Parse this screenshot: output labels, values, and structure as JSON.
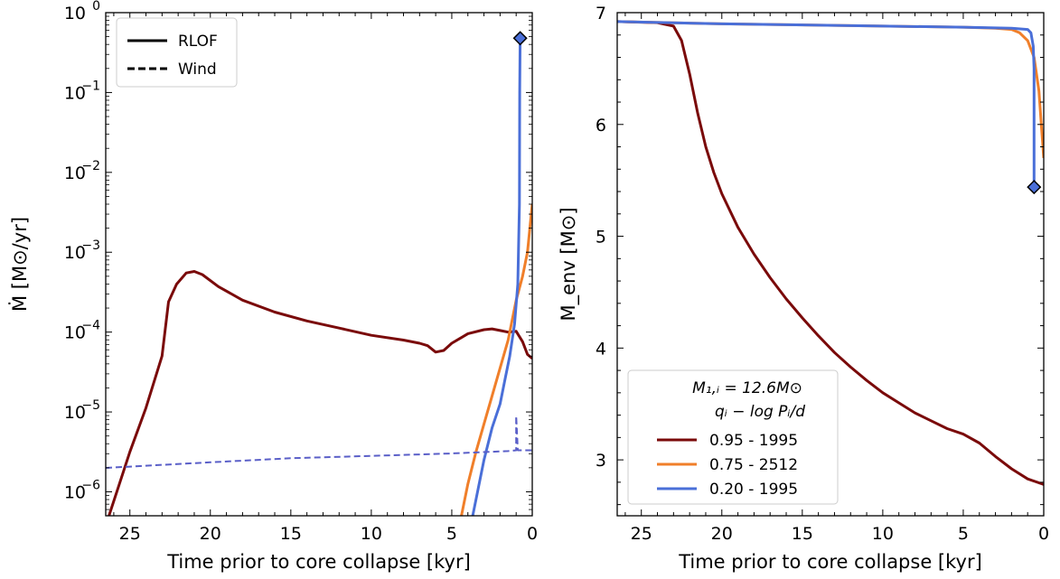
{
  "chart_data": [
    {
      "type": "line",
      "xlabel": "Time prior to core collapse [kyr]",
      "ylabel": "Ṁ [M⊙/yr]",
      "xlim": [
        26.5,
        0
      ],
      "ylim_log10": [
        -6.3,
        0
      ],
      "yscale": "log",
      "xticks": [
        "25",
        "20",
        "15",
        "10",
        "5",
        "0"
      ],
      "yticks": [
        {
          "base": "10",
          "exp": "−6",
          "v": -6
        },
        {
          "base": "10",
          "exp": "−5",
          "v": -5
        },
        {
          "base": "10",
          "exp": "−4",
          "v": -4
        },
        {
          "base": "10",
          "exp": "−3",
          "v": -3
        },
        {
          "base": "10",
          "exp": "−2",
          "v": -2
        },
        {
          "base": "10",
          "exp": "−1",
          "v": -1
        },
        {
          "base": "10",
          "exp": "0",
          "v": 0
        }
      ],
      "legend": {
        "position": "top-left",
        "entries": [
          {
            "label": "RLOF",
            "style": "solid"
          },
          {
            "label": "Wind",
            "style": "dashed"
          }
        ]
      },
      "series": [
        {
          "color": "#7a0a0a",
          "style": "solid",
          "points": [
            [
              26.3,
              -6.3
            ],
            [
              25,
              -5.5
            ],
            [
              24,
              -4.95
            ],
            [
              23,
              -4.3
            ],
            [
              22.6,
              -3.62
            ],
            [
              22.1,
              -3.4
            ],
            [
              21.5,
              -3.26
            ],
            [
              21,
              -3.24
            ],
            [
              20.5,
              -3.28
            ],
            [
              19.5,
              -3.43
            ],
            [
              18,
              -3.6
            ],
            [
              16,
              -3.75
            ],
            [
              14,
              -3.86
            ],
            [
              12,
              -3.95
            ],
            [
              10,
              -4.04
            ],
            [
              8,
              -4.1
            ],
            [
              7,
              -4.14
            ],
            [
              6.5,
              -4.17
            ],
            [
              6,
              -4.25
            ],
            [
              5.5,
              -4.23
            ],
            [
              5,
              -4.14
            ],
            [
              4,
              -4.02
            ],
            [
              3,
              -3.97
            ],
            [
              2.5,
              -3.96
            ],
            [
              2,
              -3.98
            ],
            [
              1.5,
              -4.0
            ],
            [
              1,
              -3.99
            ],
            [
              0.6,
              -4.12
            ],
            [
              0.3,
              -4.28
            ],
            [
              0,
              -4.33
            ]
          ]
        },
        {
          "color": "#f07f2a",
          "style": "solid",
          "points": [
            [
              4.4,
              -6.3
            ],
            [
              4,
              -5.9
            ],
            [
              3.5,
              -5.5
            ],
            [
              3,
              -5.15
            ],
            [
              2.5,
              -4.8
            ],
            [
              2,
              -4.45
            ],
            [
              1.5,
              -4.1
            ],
            [
              1,
              -3.6
            ],
            [
              0.6,
              -3.3
            ],
            [
              0.3,
              -3.0
            ],
            [
              0.1,
              -2.6
            ],
            [
              0,
              -2.4
            ]
          ]
        },
        {
          "color": "#4a6fd8",
          "style": "solid",
          "points": [
            [
              3.7,
              -6.3
            ],
            [
              3,
              -5.6
            ],
            [
              2.5,
              -5.2
            ],
            [
              2,
              -4.9
            ],
            [
              1.7,
              -4.6
            ],
            [
              1.4,
              -4.3
            ],
            [
              1.1,
              -3.9
            ],
            [
              0.9,
              -3.4
            ],
            [
              0.8,
              -2.4
            ],
            [
              0.78,
              -1.0
            ],
            [
              0.75,
              -0.32
            ]
          ]
        },
        {
          "color": "#5a5fc8",
          "style": "dashed",
          "points": [
            [
              26.5,
              -5.7
            ],
            [
              20,
              -5.63
            ],
            [
              15,
              -5.58
            ],
            [
              10,
              -5.55
            ],
            [
              5,
              -5.52
            ],
            [
              1.5,
              -5.49
            ],
            [
              1,
              -5.48
            ],
            [
              1,
              -5.05
            ],
            [
              0.9,
              -5.48
            ],
            [
              0,
              -5.48
            ]
          ]
        }
      ],
      "markers": [
        {
          "x": 0.75,
          "y": -0.32,
          "color": "#4a6fd8"
        }
      ]
    },
    {
      "type": "line",
      "xlabel": "Time prior to core collapse [kyr]",
      "ylabel": "M_env [M⊙]",
      "xlim": [
        26.5,
        0
      ],
      "ylim": [
        2.5,
        7.0
      ],
      "xticks": [
        "25",
        "20",
        "15",
        "10",
        "5",
        "0"
      ],
      "yticks": [
        "3",
        "4",
        "5",
        "6",
        "7"
      ],
      "legend": {
        "position": "bottom-left",
        "title_line1": "M₁,ᵢ = 12.6M⊙",
        "title_line2": "qᵢ − log Pᵢ/d",
        "entries": [
          {
            "label": "0.95 - 1995",
            "color": "#7a0a0a"
          },
          {
            "label": "0.75 - 2512",
            "color": "#f07f2a"
          },
          {
            "label": "0.20 - 1995",
            "color": "#4a6fd8"
          }
        ]
      },
      "series": [
        {
          "color": "#7a0a0a",
          "style": "solid",
          "points": [
            [
              26.5,
              6.92
            ],
            [
              24,
              6.91
            ],
            [
              23,
              6.88
            ],
            [
              22.5,
              6.75
            ],
            [
              22,
              6.45
            ],
            [
              21.5,
              6.1
            ],
            [
              21,
              5.8
            ],
            [
              20.5,
              5.57
            ],
            [
              20,
              5.38
            ],
            [
              19,
              5.08
            ],
            [
              18,
              4.84
            ],
            [
              17,
              4.63
            ],
            [
              16,
              4.44
            ],
            [
              15,
              4.27
            ],
            [
              14,
              4.11
            ],
            [
              13,
              3.96
            ],
            [
              12,
              3.83
            ],
            [
              11,
              3.71
            ],
            [
              10,
              3.6
            ],
            [
              9,
              3.51
            ],
            [
              8,
              3.42
            ],
            [
              7,
              3.35
            ],
            [
              6,
              3.28
            ],
            [
              5,
              3.23
            ],
            [
              4,
              3.15
            ],
            [
              3,
              3.03
            ],
            [
              2,
              2.92
            ],
            [
              1,
              2.83
            ],
            [
              0,
              2.78
            ]
          ]
        },
        {
          "color": "#f07f2a",
          "style": "solid",
          "points": [
            [
              26.5,
              6.92
            ],
            [
              20,
              6.9
            ],
            [
              10,
              6.88
            ],
            [
              5,
              6.87
            ],
            [
              3,
              6.86
            ],
            [
              2,
              6.85
            ],
            [
              1.5,
              6.82
            ],
            [
              1,
              6.75
            ],
            [
              0.6,
              6.6
            ],
            [
              0.3,
              6.3
            ],
            [
              0.15,
              6.0
            ],
            [
              0,
              5.7
            ]
          ]
        },
        {
          "color": "#4a6fd8",
          "style": "solid",
          "points": [
            [
              26.5,
              6.92
            ],
            [
              20,
              6.9
            ],
            [
              10,
              6.88
            ],
            [
              5,
              6.87
            ],
            [
              2,
              6.86
            ],
            [
              1,
              6.85
            ],
            [
              0.8,
              6.82
            ],
            [
              0.65,
              6.7
            ],
            [
              0.6,
              6.5
            ],
            [
              0.6,
              5.44
            ],
            [
              0.6,
              5.44
            ]
          ]
        }
      ],
      "markers": [
        {
          "x": 0.6,
          "y": 5.44,
          "color": "#4a6fd8"
        }
      ]
    }
  ]
}
